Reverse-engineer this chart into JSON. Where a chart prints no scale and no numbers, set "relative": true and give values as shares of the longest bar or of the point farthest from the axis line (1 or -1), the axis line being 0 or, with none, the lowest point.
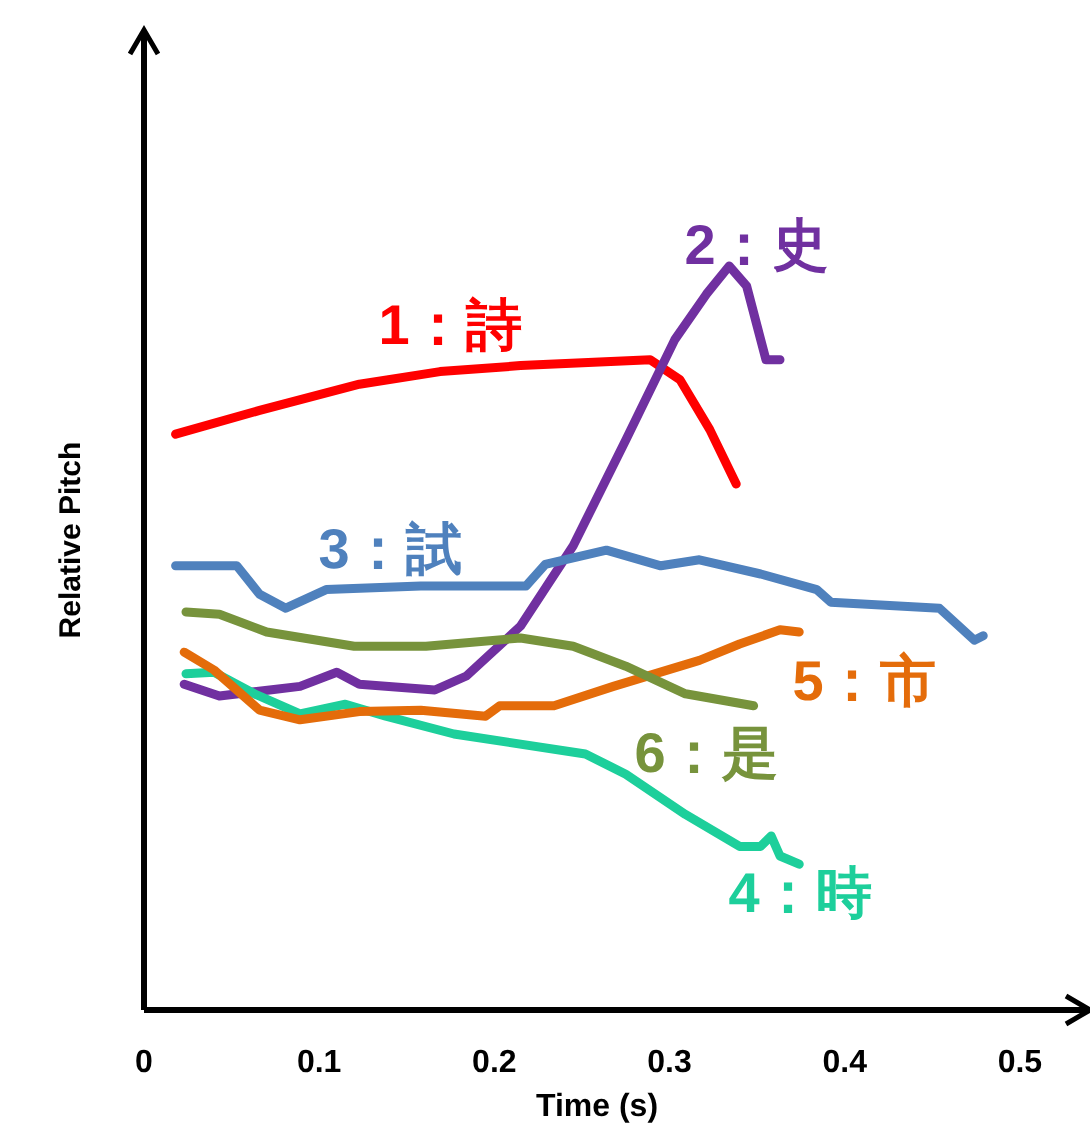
{
  "chart_data": {
    "type": "line",
    "relative": true,
    "xlabel": "Time (s)",
    "ylabel": "Relative Pitch",
    "xlim": [
      0,
      0.54
    ],
    "xticks": [
      0,
      0.1,
      0.2,
      0.3,
      0.4,
      0.5
    ],
    "grid": false,
    "legend": false,
    "marker": "none",
    "line_style": "solid",
    "series": [
      {
        "name": "1：詩",
        "color": "#ff0000",
        "x": [
          0.018,
          0.066,
          0.123,
          0.169,
          0.215,
          0.26,
          0.289,
          0.306,
          0.323,
          0.338
        ],
        "values": [
          0.774,
          0.806,
          0.841,
          0.858,
          0.866,
          0.871,
          0.874,
          0.847,
          0.78,
          0.707
        ]
      },
      {
        "name": "2：史",
        "color": "#7030a0",
        "x": [
          0.023,
          0.043,
          0.089,
          0.11,
          0.123,
          0.166,
          0.184,
          0.215,
          0.245,
          0.275,
          0.303,
          0.321,
          0.334,
          0.344,
          0.355,
          0.363
        ],
        "values": [
          0.438,
          0.422,
          0.435,
          0.454,
          0.438,
          0.43,
          0.449,
          0.516,
          0.624,
          0.766,
          0.901,
          0.962,
          1,
          0.973,
          0.874,
          0.874
        ]
      },
      {
        "name": "3：試",
        "color": "#4f81bd",
        "x": [
          0.018,
          0.053,
          0.066,
          0.081,
          0.104,
          0.158,
          0.218,
          0.229,
          0.264,
          0.295,
          0.317,
          0.352,
          0.384,
          0.392,
          0.454,
          0.474,
          0.479
        ],
        "values": [
          0.597,
          0.597,
          0.559,
          0.54,
          0.565,
          0.57,
          0.57,
          0.599,
          0.618,
          0.597,
          0.605,
          0.586,
          0.565,
          0.548,
          0.54,
          0.497,
          0.503
        ]
      },
      {
        "name": "4：時",
        "color": "#1dcf9b",
        "x": [
          0.024,
          0.04,
          0.063,
          0.089,
          0.115,
          0.138,
          0.177,
          0.252,
          0.275,
          0.309,
          0.34,
          0.352,
          0.358,
          0.363,
          0.374
        ],
        "values": [
          0.452,
          0.454,
          0.425,
          0.398,
          0.411,
          0.395,
          0.371,
          0.344,
          0.317,
          0.263,
          0.22,
          0.22,
          0.234,
          0.207,
          0.196
        ]
      },
      {
        "name": "5：市",
        "color": "#e46c0a",
        "x": [
          0.023,
          0.04,
          0.066,
          0.089,
          0.123,
          0.158,
          0.195,
          0.203,
          0.234,
          0.268,
          0.317,
          0.34,
          0.363,
          0.374
        ],
        "values": [
          0.481,
          0.457,
          0.403,
          0.39,
          0.401,
          0.403,
          0.395,
          0.409,
          0.409,
          0.435,
          0.47,
          0.492,
          0.511,
          0.508
        ]
      },
      {
        "name": "6：是",
        "color": "#77933c",
        "x": [
          0.024,
          0.043,
          0.07,
          0.12,
          0.161,
          0.215,
          0.245,
          0.275,
          0.309,
          0.348
        ],
        "values": [
          0.535,
          0.532,
          0.508,
          0.489,
          0.489,
          0.5,
          0.489,
          0.462,
          0.425,
          0.409
        ]
      }
    ]
  }
}
